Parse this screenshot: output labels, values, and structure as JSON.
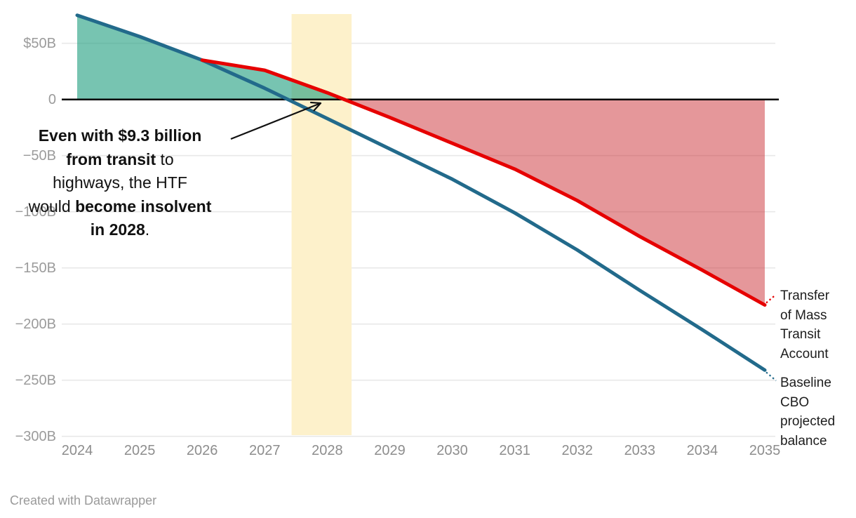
{
  "chart_data": {
    "type": "area",
    "title": "",
    "xlabel": "",
    "ylabel": "",
    "unit": "billions of dollars",
    "x": [
      2024,
      2025,
      2026,
      2027,
      2028,
      2029,
      2030,
      2031,
      2032,
      2033,
      2034,
      2035
    ],
    "xlim": [
      2024,
      2035
    ],
    "ylim": [
      -300,
      75
    ],
    "grid": "horizontal",
    "series": [
      {
        "name": "Baseline CBO projected balance",
        "color": "#226a8b",
        "start_year": 2024,
        "values": [
          75,
          56,
          35,
          10,
          -17,
          -44,
          -71,
          -101,
          -134,
          -170,
          -205,
          -241
        ]
      },
      {
        "name": "Transfer of Mass Transit Account",
        "color": "#e60000",
        "start_year": 2026,
        "values": [
          35,
          26,
          6,
          -16,
          -39,
          -62,
          -90,
          -122,
          -152,
          -183
        ]
      }
    ],
    "area_fills": {
      "positive_fill": "rgba(29,156,125,0.6)",
      "negative_fill": "rgba(200,35,40,0.47)",
      "note": "green fill = upper series above zero; red fill = upper series below zero"
    },
    "highlight_band": {
      "from_year": 2027.43,
      "to_year": 2028.39,
      "color": "#fdf1cb"
    },
    "y_axis": {
      "ticks": [
        {
          "value": 50,
          "label": "$50B"
        },
        {
          "value": 0,
          "label": "0"
        },
        {
          "value": -50,
          "label": "−50B"
        },
        {
          "value": -100,
          "label": "−100B"
        },
        {
          "value": -150,
          "label": "−150B"
        },
        {
          "value": -200,
          "label": "−200B"
        },
        {
          "value": -250,
          "label": "−250B"
        },
        {
          "value": -300,
          "label": "−300B"
        }
      ],
      "zero_line_color": "#000000",
      "grid_color": "#e8e8e8"
    },
    "x_axis": {
      "ticks": [
        "2024",
        "2025",
        "2026",
        "2027",
        "2028",
        "2029",
        "2030",
        "2031",
        "2032",
        "2033",
        "2034",
        "2035"
      ]
    }
  },
  "annotation": {
    "full_text": "Even with $9.3 billion from transit to highways, the HTF would become insolvent in 2028.",
    "lines": [
      [
        {
          "text": "Even with $9.3 billion",
          "bold": true
        }
      ],
      [
        {
          "text": "from transit",
          "bold": true
        },
        {
          "text": " to",
          "bold": false
        }
      ],
      [
        {
          "text": "highways, the HTF",
          "bold": false
        }
      ],
      [
        {
          "text": "would ",
          "bold": false
        },
        {
          "text": "become insolvent",
          "bold": true
        }
      ],
      [
        {
          "text": "in 2028",
          "bold": true
        },
        {
          "text": ".",
          "bold": false
        }
      ]
    ],
    "arrow_points_to": "red line zero crossing in 2028"
  },
  "legend": {
    "items": [
      {
        "lines": [
          "Transfer",
          "of Mass",
          "Transit",
          "Account"
        ],
        "series": "Transfer of Mass Transit Account",
        "color": "#e60000"
      },
      {
        "lines": [
          "Baseline",
          "CBO",
          "projected",
          "balance"
        ],
        "series": "Baseline CBO projected balance",
        "color": "#226a8b"
      }
    ]
  },
  "footer": {
    "credit": "Created with Datawrapper"
  }
}
